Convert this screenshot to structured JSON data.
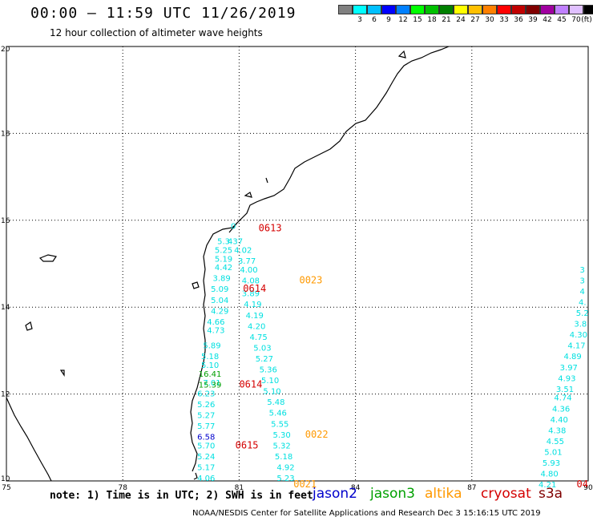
{
  "header": {
    "title": "00:00 – 11:59 UTC 11/26/2019",
    "subtitle": "12 hour collection of altimeter wave heights"
  },
  "scale": {
    "unit": "(ft)",
    "colors": [
      "#808080",
      "#00ffff",
      "#00c0ff",
      "#0000ff",
      "#0080ff",
      "#00ff00",
      "#00c000",
      "#008000",
      "#ffff00",
      "#ffc000",
      "#ff8000",
      "#ff0000",
      "#c00000",
      "#800000",
      "#a000a0",
      "#c080ff",
      "#e0c0ff",
      "#000000"
    ],
    "labels": [
      "3",
      "6",
      "9",
      "12",
      "15",
      "18",
      "21",
      "24",
      "27",
      "30",
      "33",
      "36",
      "39",
      "42",
      "45",
      "70"
    ]
  },
  "axes": {
    "x_ticks": [
      "75",
      "78",
      "81",
      "84",
      "87",
      "90"
    ],
    "y_ticks": [
      "10",
      "12",
      "14",
      "16",
      "18",
      "20"
    ],
    "x_range": [
      75,
      90
    ],
    "y_range": [
      10,
      20
    ]
  },
  "readings": {
    "cyan": [
      {
        "lon": 80.85,
        "lat": 15.8,
        "v": "0"
      },
      {
        "lon": 80.6,
        "lat": 15.45,
        "v": "5.3"
      },
      {
        "lon": 80.9,
        "lat": 15.45,
        "v": "437"
      },
      {
        "lon": 80.6,
        "lat": 15.25,
        "v": "5.25"
      },
      {
        "lon": 81.1,
        "lat": 15.25,
        "v": "4.02"
      },
      {
        "lon": 80.6,
        "lat": 15.05,
        "v": "5.19"
      },
      {
        "lon": 81.2,
        "lat": 15.0,
        "v": "3.77"
      },
      {
        "lon": 80.6,
        "lat": 14.85,
        "v": "4.42"
      },
      {
        "lon": 81.25,
        "lat": 14.8,
        "v": "4.00"
      },
      {
        "lon": 80.55,
        "lat": 14.6,
        "v": "3.89"
      },
      {
        "lon": 81.3,
        "lat": 14.55,
        "v": "4.08"
      },
      {
        "lon": 80.5,
        "lat": 14.35,
        "v": "5.09"
      },
      {
        "lon": 81.3,
        "lat": 14.25,
        "v": "3.89"
      },
      {
        "lon": 80.5,
        "lat": 14.1,
        "v": "5.04"
      },
      {
        "lon": 81.35,
        "lat": 14.0,
        "v": "4.19"
      },
      {
        "lon": 80.5,
        "lat": 13.85,
        "v": "4.29"
      },
      {
        "lon": 81.4,
        "lat": 13.75,
        "v": "4.19"
      },
      {
        "lon": 80.4,
        "lat": 13.6,
        "v": "4.66"
      },
      {
        "lon": 81.45,
        "lat": 13.5,
        "v": "4.20"
      },
      {
        "lon": 80.4,
        "lat": 13.4,
        "v": "4.73"
      },
      {
        "lon": 81.5,
        "lat": 13.25,
        "v": "4.75"
      },
      {
        "lon": 80.3,
        "lat": 13.05,
        "v": "5.89"
      },
      {
        "lon": 81.6,
        "lat": 13.0,
        "v": "5.03"
      },
      {
        "lon": 80.25,
        "lat": 12.8,
        "v": "5.18"
      },
      {
        "lon": 81.65,
        "lat": 12.75,
        "v": "5.27"
      },
      {
        "lon": 80.25,
        "lat": 12.6,
        "v": "5.10"
      },
      {
        "lon": 81.75,
        "lat": 12.5,
        "v": "5.36"
      },
      {
        "lon": 81.8,
        "lat": 12.25,
        "v": "5.10"
      },
      {
        "lon": 80.3,
        "lat": 12.2,
        "v": "7.01"
      },
      {
        "lon": 81.85,
        "lat": 12.0,
        "v": "5.10"
      },
      {
        "lon": 80.15,
        "lat": 11.95,
        "v": "6.23"
      },
      {
        "lon": 81.95,
        "lat": 11.75,
        "v": "5.48"
      },
      {
        "lon": 80.15,
        "lat": 11.7,
        "v": "5.26"
      },
      {
        "lon": 82.0,
        "lat": 11.5,
        "v": "5.46"
      },
      {
        "lon": 80.15,
        "lat": 11.45,
        "v": "5.27"
      },
      {
        "lon": 82.05,
        "lat": 11.25,
        "v": "5.55"
      },
      {
        "lon": 80.15,
        "lat": 11.2,
        "v": "5.77"
      },
      {
        "lon": 82.1,
        "lat": 11.0,
        "v": "5.30"
      },
      {
        "lon": 82.1,
        "lat": 10.75,
        "v": "5.32"
      },
      {
        "lon": 82.15,
        "lat": 10.5,
        "v": "5.18"
      },
      {
        "lon": 82.2,
        "lat": 10.25,
        "v": "4.92"
      },
      {
        "lon": 80.15,
        "lat": 10.75,
        "v": "5.70"
      },
      {
        "lon": 80.15,
        "lat": 10.5,
        "v": "5.24"
      },
      {
        "lon": 80.15,
        "lat": 10.25,
        "v": "5.17"
      },
      {
        "lon": 80.15,
        "lat": 10.0,
        "v": "4.06"
      },
      {
        "lon": 82.2,
        "lat": 10.0,
        "v": "5.23"
      },
      {
        "lon": 89.85,
        "lat": 14.8,
        "v": "3"
      },
      {
        "lon": 89.85,
        "lat": 14.55,
        "v": "3"
      },
      {
        "lon": 89.85,
        "lat": 14.3,
        "v": "4"
      },
      {
        "lon": 89.85,
        "lat": 14.05,
        "v": "4."
      },
      {
        "lon": 89.85,
        "lat": 13.8,
        "v": "5.2"
      },
      {
        "lon": 89.8,
        "lat": 13.55,
        "v": "3.8"
      },
      {
        "lon": 89.75,
        "lat": 13.3,
        "v": "4.30"
      },
      {
        "lon": 89.7,
        "lat": 13.05,
        "v": "4.17"
      },
      {
        "lon": 89.6,
        "lat": 12.8,
        "v": "4.89"
      },
      {
        "lon": 89.5,
        "lat": 12.55,
        "v": "3.97"
      },
      {
        "lon": 89.45,
        "lat": 12.3,
        "v": "4.93"
      },
      {
        "lon": 89.4,
        "lat": 12.05,
        "v": "3.51"
      },
      {
        "lon": 89.35,
        "lat": 11.85,
        "v": "4.74"
      },
      {
        "lon": 89.3,
        "lat": 11.6,
        "v": "4.36"
      },
      {
        "lon": 89.25,
        "lat": 11.35,
        "v": "4.40"
      },
      {
        "lon": 89.2,
        "lat": 11.1,
        "v": "4.38"
      },
      {
        "lon": 89.15,
        "lat": 10.85,
        "v": "4.55"
      },
      {
        "lon": 89.1,
        "lat": 10.6,
        "v": "5.01"
      },
      {
        "lon": 89.05,
        "lat": 10.35,
        "v": "5.93"
      },
      {
        "lon": 89.0,
        "lat": 10.1,
        "v": "4.80"
      },
      {
        "lon": 88.95,
        "lat": 9.85,
        "v": "4.21"
      }
    ],
    "blue": [
      {
        "lon": 80.15,
        "lat": 10.95,
        "v": "6.58"
      }
    ],
    "green": [
      {
        "lon": 80.25,
        "lat": 12.4,
        "v": "16.41"
      },
      {
        "lon": 80.25,
        "lat": 12.15,
        "v": "15.39"
      }
    ]
  },
  "passes": {
    "cryosat": [
      {
        "lon": 81.8,
        "lat": 15.75,
        "v": "0613"
      },
      {
        "lon": 81.4,
        "lat": 14.35,
        "v": "0614"
      },
      {
        "lon": 81.3,
        "lat": 12.15,
        "v": "0614"
      },
      {
        "lon": 81.2,
        "lat": 10.75,
        "v": "0615"
      },
      {
        "lon": 89.85,
        "lat": 9.85,
        "v": "04"
      }
    ],
    "altika": [
      {
        "lon": 82.85,
        "lat": 14.55,
        "v": "0023"
      },
      {
        "lon": 83.0,
        "lat": 11.0,
        "v": "0022"
      },
      {
        "lon": 82.7,
        "lat": 9.85,
        "v": "0021"
      }
    ]
  },
  "footer": {
    "note": "note: 1) Time is in UTC; 2) SWH is in feet",
    "satellites": [
      {
        "name": "jason2",
        "color": "#0000cc"
      },
      {
        "name": "jason3",
        "color": "#00a000"
      },
      {
        "name": "altika",
        "color": "#ff9900"
      },
      {
        "name": "cryosat",
        "color": "#d40000"
      },
      {
        "name": "s3a",
        "color": "#800000"
      }
    ],
    "credit": "NOAA/NESDIS Center for Satellite Applications and Research    Dec  3 15:16:15 UTC 2019"
  },
  "colors": {
    "cyan": "#00e0e0",
    "blue": "#0000cc",
    "green": "#00a000",
    "cryosat": "#d40000",
    "altika": "#ff9900"
  }
}
